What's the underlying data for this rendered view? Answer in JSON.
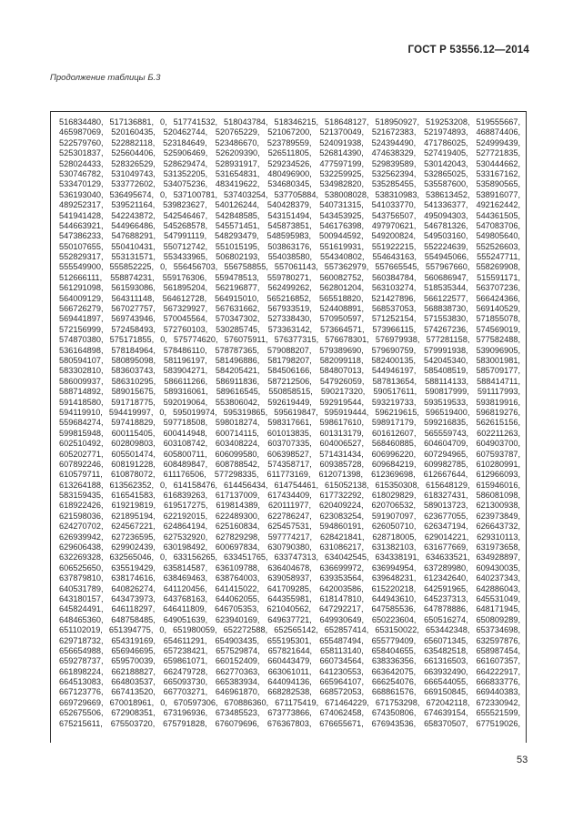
{
  "header": {
    "standard": "ГОСТ Р 53556.12—2014"
  },
  "caption": "Продолжение  таблицы Б.3",
  "rows": [
    "516834480, 517136881, 0, 517741532, 518043784, 518346215, 518648127, 518950927, 519253208, 519555667,",
    "465987069, 520160435, 520462744, 520765229, 521067200, 521370049, 521672383, 521974893, 468874406,",
    "522579760, 522882118, 523184649, 523486670, 523789559, 524091938, 524394490, 471786025, 524999439,",
    "525301837, 525604406, 525906469, 526209390, 526511805, 526814390, 474638329, 527419405, 527721835,",
    "528024433, 528326529, 528629474, 528931917, 529234526, 477597199, 529839589, 530142043, 530444662,",
    "530746782, 531049743, 531352205, 531654831, 480496900, 532259925, 532562394, 532865025, 533167162,",
    "533470129, 533772602, 534075236, 483419622, 534680345, 534982820, 535285455, 535587600, 535890565,",
    "536193040, 536495674, 0, 537100781, 537403254, 537705884, 538008028, 538310983, 538613452, 538916077,",
    "489252317, 539521164, 539823627, 540126244, 540428379, 540731315, 541033770, 541336377, 492162442,",
    "541941428, 542243872, 542546467, 542848585, 543151494, 543453925, 543756507, 495094303, 544361505,",
    "544663921, 544966486, 545268578, 545571451, 545873851, 546176398, 497970621, 546781326, 547083706,",
    "547386233, 547688291, 547991119, 548293479, 548595983, 500944592, 549200824, 549503160, 549805640,",
    "550107655, 550410431, 550712742, 551015195, 503863176, 551619931, 551922215, 552224639, 552526603,",
    "552829317, 553131571, 553433965, 506802193, 554038580, 554340802, 554643163, 554945066, 555247711,",
    "555549900, 555852225, 0, 556456703, 556758855, 557061143, 557362979, 557665545, 557967660, 558269908,",
    "512666111, 558874231, 559176306, 559478513, 559780271, 560082752, 560384784, 560686947, 515591171,",
    "561291098, 561593086, 561895204, 562196877, 562499262, 562801204, 563103274, 518535344, 563707236,",
    "564009129, 564311148, 564612728, 564915010, 565216852, 565518820, 521427896, 566122577, 566424366,",
    "566726279, 567027757, 567329927, 567631662, 567933519, 524408891, 568537053, 568838730, 569140529,",
    "569441897, 569743946, 570045564, 570347302, 527338430, 570950597, 571252154, 571553830, 571855078,",
    "572156999, 572458493, 572760103, 530285745, 573363142, 573664571, 573966115, 574267236, 574569019,",
    "574870380, 575171855, 0, 575774620, 576075911, 576377315, 576678301, 576979938, 577281158, 577582488,",
    "536164898, 578184964, 578486110, 578787365, 579088207, 579389690, 579690759, 579991938, 539096905,",
    "580594107, 580895098, 581196197, 581496886, 581798207, 582099118, 582400135, 542045340, 583001981,",
    "583302810, 583603743, 583904271, 584205421, 584506166, 584807013, 544946197, 585408519, 585709177,",
    "586009937, 586310295, 586611266, 586911836, 587212506, 547926059, 587813654, 588114133, 588414711,",
    "588714892, 589015675, 589316061, 589616545, 550858515, 590217320, 590517611, 590817999, 591117993,",
    "591418580, 591718775, 592019064, 553806042, 592619449, 592919544, 593219733, 593519533, 593819916,",
    "594119910, 594419997, 0, 595019974, 595319865, 595619847, 595919444, 596219615, 596519400, 596819276,",
    "559684274, 597418829, 597718508, 598018274, 598317661, 598617610, 598917179, 599216835, 562615156,",
    "599815948, 600115405, 600414948, 600714115, 601013835, 601313179, 601612607, 565559743, 602211263,",
    "602510492, 602809803, 603108742, 603408224, 603707335, 604006527, 568460885, 604604709, 604903700,",
    "605202771, 605501474, 605800711, 606099580, 606398527, 571431434, 606996220, 607294965, 607593787,",
    "607892246, 608191228, 608489847, 608788542, 574358717, 609385728, 609684219, 609982785, 610280991,",
    "610579711, 610878072, 611176506, 577298335, 611773169, 612071398, 612369698, 612667644, 612966093,",
    "613264188, 613562352, 0, 614158476, 614456434, 614754461, 615052138, 615350308, 615648129, 615946016,",
    "583159435, 616541583, 616839263, 617137009, 617434409, 617732292, 618029829, 618327431, 586081098,",
    "618922426, 619219819, 619517275, 619814389, 620111977, 620409224, 620706532, 589013723, 621300938,",
    "621598036, 621895194, 622192015, 622489300, 622786247, 623083254, 591907097, 623677055, 623973849,",
    "624270702, 624567221, 624864194, 625160834, 625457531, 594860191, 626050710, 626347194, 626643732,",
    "626939942, 627236595, 627532920, 627829298, 597774217, 628421841, 628718005, 629014221, 629310113,",
    "629606438, 629902439, 630198492, 600697834, 630790380, 631086217, 631382103, 631677669, 631973658,",
    "632269328, 632565046, 0, 633156265, 633451765, 633747313, 634042545, 634338191, 634633521, 634928897,",
    "606525650, 635519429, 635814587, 636109788, 636404678, 636699972, 636994954, 637289980, 609430035,",
    "637879810, 638174616, 638469463, 638764003, 639058937, 639353564, 639648231, 612342640, 640237343,",
    "640531789, 640826274, 641120456, 641415022, 641709285, 642003586, 615220218, 642591965, 642886043,",
    "643180157, 643473973, 643768163, 644062055, 644355981, 618147810, 644943610, 645237313, 645531049,",
    "645824491, 646118297, 646411809, 646705353, 621040562, 647292217, 647585536, 647878886, 648171945,",
    "648465360, 648758485, 649051639, 623940169, 649637721, 649930649, 650223604, 650516274, 650809289,",
    "651102019, 651394775, 0, 651980059, 652272588, 652565142, 652857414, 653150022, 653442348, 653734698,",
    "629718732, 654319169, 654611291, 654903435, 655195301, 655487494, 655779409, 656071345, 632597876,",
    "656654988, 656946695, 657238421, 657529874, 657821644, 658113140, 658404655, 635482518, 658987454,",
    "659278737, 659570039, 659861071, 660152409, 660443479, 660734564, 638336356, 661316503, 661607357,",
    "661898224, 662188827, 662479728, 662770363, 663061011, 641230553, 663642075, 663932490, 664222917,",
    "664513083, 664803537, 665093730, 665383934, 644094136, 665964107, 666254076, 666544055, 666833776,",
    "667123776, 667413520, 667703271, 646961870, 668282538, 668572053, 668861576, 669150845, 669440383,",
    "669729669, 670018961, 0, 670597306, 670886360, 671175419, 671464229, 671753298, 672042118, 672330942,",
    "652675506, 672908351, 673196936, 673485523, 673773866, 674062458, 674350806, 674639154, 655521599,",
    "675215611, 675503720, 675791828, 676079696, 676367803, 676655671, 676943536, 658370507, 677519026,"
  ],
  "page_number": "53"
}
